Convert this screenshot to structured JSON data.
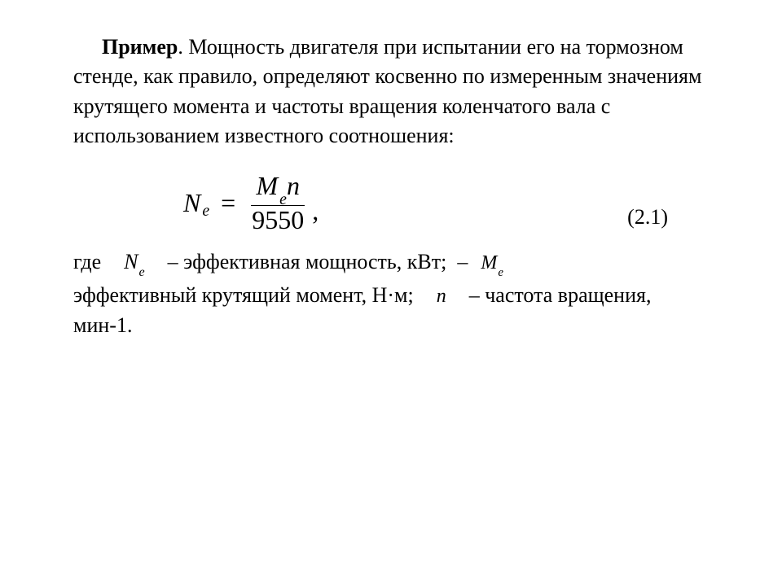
{
  "paragraph": {
    "label": "Пример",
    "text": ". Мощность двигателя при испытании его на тормозном стенде, как правило, определяют косвенно по измеренным значениям крутящего момента и частоты вращения коленчатого вала с использованием известного соотношения:"
  },
  "equation": {
    "lhs_var": "N",
    "lhs_sub": "e",
    "eq": "=",
    "num_var1": "M",
    "num_sub1": "e",
    "num_var2": "n",
    "denom": "9550",
    "comma": ",",
    "number": "(2.1)"
  },
  "definition": {
    "where": "где",
    "sym1_var": "N",
    "sym1_sub": "e",
    "def1": "– эффективная мощность, кВт;",
    "dash2": "–",
    "sym2_var": "M",
    "sym2_sub": "e",
    "def2_p1": "эффективный крутящий момент, Н·м;",
    "sym3": "n",
    "def3": "– частота вращения, мин-1."
  },
  "style": {
    "body_fontsize": 26,
    "eq_fontsize": 32,
    "background": "#ffffff",
    "text_color": "#000000"
  }
}
